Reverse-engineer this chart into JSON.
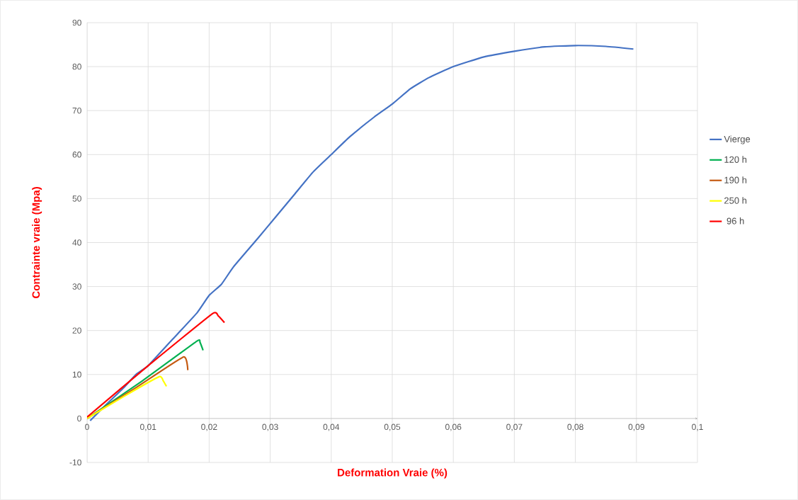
{
  "chart_data": {
    "type": "line",
    "xlabel": "Deformation Vraie (%)",
    "ylabel": "Contrainte vraie (Mpa)",
    "xlim": [
      0,
      0.1
    ],
    "ylim": [
      -10,
      90
    ],
    "xticks": [
      0,
      {
        "value": 0.01,
        "label": "0,01"
      },
      {
        "value": 0.02,
        "label": "0,02"
      },
      {
        "value": 0.03,
        "label": "0,03"
      },
      {
        "value": 0.04,
        "label": "0,04"
      },
      {
        "value": 0.05,
        "label": "0,05"
      },
      {
        "value": 0.06,
        "label": "0,06"
      },
      {
        "value": 0.07,
        "label": "0,07"
      },
      {
        "value": 0.08,
        "label": "0,08"
      },
      {
        "value": 0.09,
        "label": "0,09"
      },
      {
        "value": 0.1,
        "label": "0,1"
      }
    ],
    "yticks": [
      -10,
      0,
      10,
      20,
      30,
      40,
      50,
      60,
      70,
      80,
      90
    ],
    "grid": true,
    "legend": "right",
    "marker": "none",
    "line_style": "solid",
    "series": [
      {
        "name": "Vierge",
        "color": "#4472c4",
        "x": [
          0.0005,
          0.003,
          0.006,
          0.008,
          0.01,
          0.014,
          0.018,
          0.02,
          0.022,
          0.024,
          0.028,
          0.031,
          0.034,
          0.037,
          0.04,
          0.043,
          0.047,
          0.05,
          0.053,
          0.056,
          0.06,
          0.065,
          0.07,
          0.075,
          0.08,
          0.085,
          0.0895
        ],
        "values": [
          -0.5,
          3,
          7,
          10,
          12,
          18,
          24,
          28,
          30.5,
          34.5,
          41,
          46,
          51,
          56,
          60,
          64,
          68.5,
          71.5,
          75,
          77.5,
          80,
          82.2,
          83.5,
          84.5,
          84.8,
          84.6,
          84
        ]
      },
      {
        "name": "120 h",
        "color": "#00b050",
        "x": [
          0,
          0.009,
          0.018,
          0.0185,
          0.019
        ],
        "values": [
          0,
          8.5,
          17.6,
          17.3,
          15.5
        ]
      },
      {
        "name": "190 h",
        "color": "#c55a11",
        "x": [
          0,
          0.008,
          0.0158,
          0.0165
        ],
        "values": [
          0,
          7,
          14,
          11
        ]
      },
      {
        "name": "250 h",
        "color": "#ffff00",
        "x": [
          0,
          0.006,
          0.0118,
          0.0125,
          0.013
        ],
        "values": [
          0,
          5,
          9.5,
          8.5,
          7.3
        ]
      },
      {
        "name": " 96 h",
        "color": "#ff0000",
        "x": [
          0,
          0.01,
          0.0205,
          0.0215,
          0.0225
        ],
        "values": [
          0.3,
          12,
          23.8,
          23.3,
          21.8
        ]
      }
    ]
  }
}
